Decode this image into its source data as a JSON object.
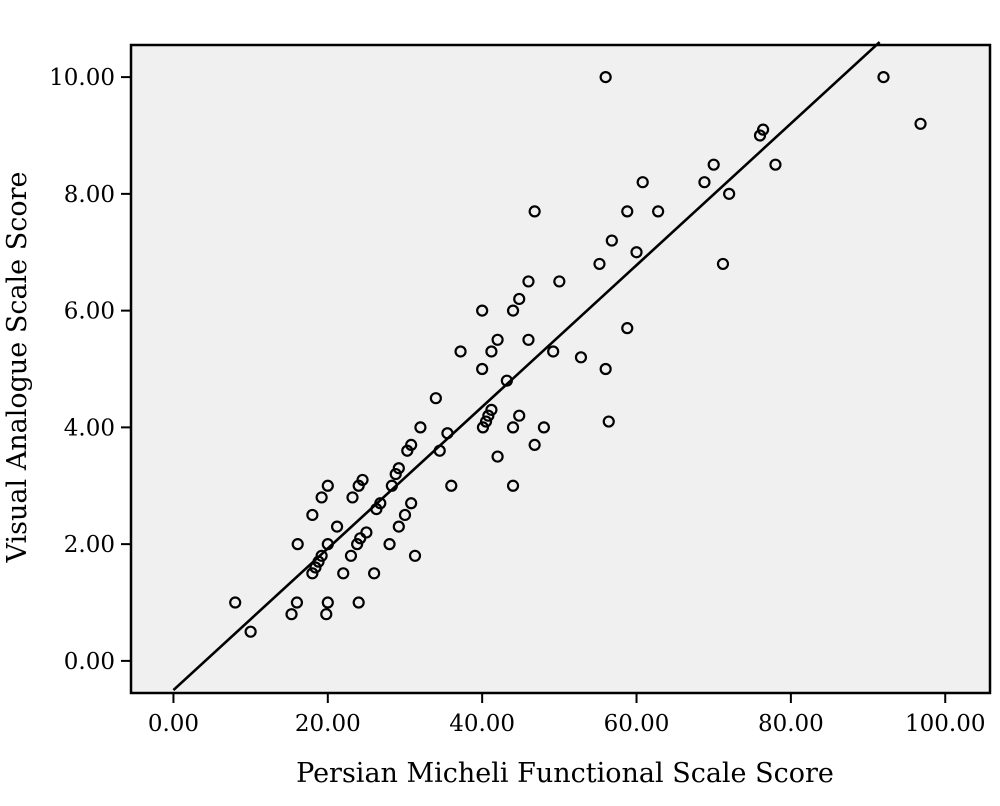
{
  "chart_data": {
    "type": "scatter",
    "title": "",
    "xlabel": "Persian Micheli Functional Scale Score",
    "ylabel": "Visual Analogue Scale Score",
    "xlim": [
      -5.5,
      105.8
    ],
    "ylim": [
      -0.55,
      10.55
    ],
    "x_ticks": [
      0,
      20,
      40,
      60,
      80,
      100
    ],
    "y_ticks": [
      0,
      2,
      4,
      6,
      8,
      10
    ],
    "x_tick_labels": [
      "0.00",
      "20.00",
      "40.00",
      "60.00",
      "80.00",
      "100.00"
    ],
    "y_tick_labels": [
      "0.00",
      "2.00",
      "4.00",
      "6.00",
      "8.00",
      "10.00"
    ],
    "grid": false,
    "legend": "none",
    "colors": {
      "plot_background": "#f0f0f0",
      "marker": "#000000",
      "fit_line": "#000000"
    },
    "fit_line": {
      "x": [
        0,
        91.5
      ],
      "y": [
        -0.5,
        10.6
      ]
    },
    "points": [
      [
        8,
        1.0
      ],
      [
        10,
        0.5
      ],
      [
        15.3,
        0.8
      ],
      [
        16,
        1.0
      ],
      [
        16.1,
        2.0
      ],
      [
        18,
        2.5
      ],
      [
        18,
        1.5
      ],
      [
        18.4,
        1.6
      ],
      [
        18.8,
        1.7
      ],
      [
        19.2,
        1.8
      ],
      [
        19.2,
        2.8
      ],
      [
        19.8,
        0.8
      ],
      [
        20,
        1.0
      ],
      [
        20,
        2.0
      ],
      [
        20,
        3.0
      ],
      [
        21.2,
        2.3
      ],
      [
        22,
        1.5
      ],
      [
        23,
        1.8
      ],
      [
        23.2,
        2.8
      ],
      [
        23.8,
        2.0
      ],
      [
        24,
        3.0
      ],
      [
        24,
        1.0
      ],
      [
        24.2,
        2.1
      ],
      [
        24.5,
        3.1
      ],
      [
        25,
        2.2
      ],
      [
        26,
        1.5
      ],
      [
        26.3,
        2.6
      ],
      [
        26.8,
        2.7
      ],
      [
        28,
        2.0
      ],
      [
        28.3,
        3.0
      ],
      [
        28.8,
        3.2
      ],
      [
        29.2,
        3.3
      ],
      [
        29.2,
        2.3
      ],
      [
        30,
        2.5
      ],
      [
        30.3,
        3.6
      ],
      [
        30.8,
        3.7
      ],
      [
        30.8,
        2.7
      ],
      [
        31.3,
        1.8
      ],
      [
        32,
        4.0
      ],
      [
        34,
        4.5
      ],
      [
        34.5,
        3.6
      ],
      [
        35.5,
        3.9
      ],
      [
        36,
        3.0
      ],
      [
        37.2,
        5.3
      ],
      [
        40,
        6.0
      ],
      [
        40,
        5.0
      ],
      [
        40.1,
        4.0
      ],
      [
        40.5,
        4.1
      ],
      [
        40.8,
        4.2
      ],
      [
        41.2,
        4.3
      ],
      [
        41.2,
        5.3
      ],
      [
        42,
        5.5
      ],
      [
        42,
        3.5
      ],
      [
        43.2,
        4.8
      ],
      [
        44,
        6.0
      ],
      [
        44,
        4.0
      ],
      [
        44,
        3.0
      ],
      [
        44.8,
        6.2
      ],
      [
        44.8,
        4.2
      ],
      [
        46,
        6.5
      ],
      [
        46,
        5.5
      ],
      [
        46.8,
        7.7
      ],
      [
        46.8,
        3.7
      ],
      [
        48,
        4.0
      ],
      [
        49.2,
        5.3
      ],
      [
        50,
        6.5
      ],
      [
        52.8,
        5.2
      ],
      [
        55.2,
        6.8
      ],
      [
        56,
        10.0
      ],
      [
        56,
        5.0
      ],
      [
        56.4,
        4.1
      ],
      [
        56.8,
        7.2
      ],
      [
        58.8,
        7.7
      ],
      [
        58.8,
        5.7
      ],
      [
        60,
        7.0
      ],
      [
        60.8,
        8.2
      ],
      [
        62.8,
        7.7
      ],
      [
        68.8,
        8.2
      ],
      [
        70,
        8.5
      ],
      [
        71.2,
        6.8
      ],
      [
        72,
        8.0
      ],
      [
        76,
        9.0
      ],
      [
        76.4,
        9.1
      ],
      [
        78,
        8.5
      ],
      [
        92,
        10.0
      ],
      [
        96.8,
        9.2
      ]
    ]
  }
}
